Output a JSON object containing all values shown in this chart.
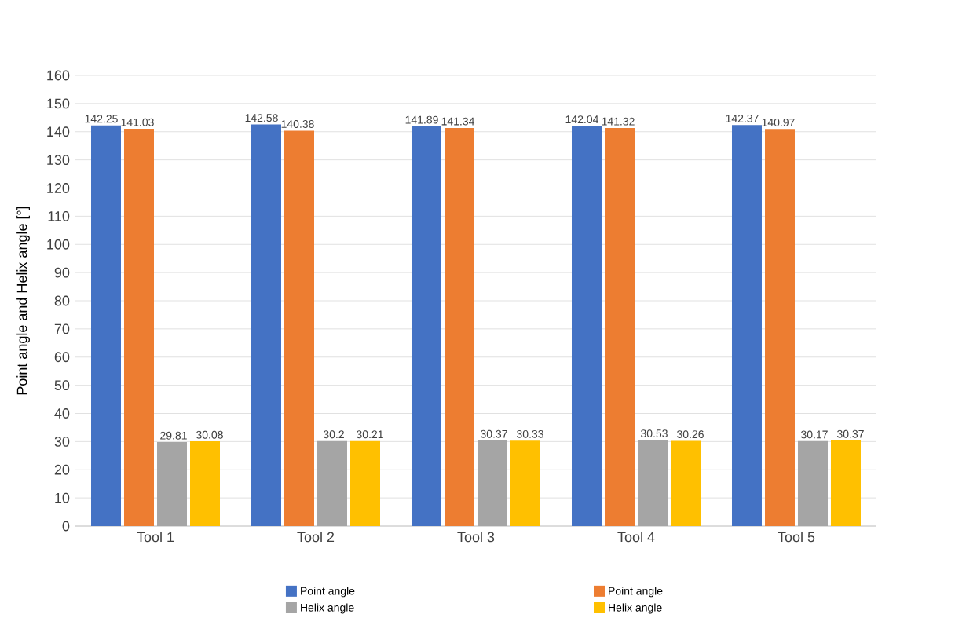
{
  "chart_data": {
    "type": "bar",
    "ylabel": "Point angle and Helix angle [°]",
    "categories": [
      "Tool 1",
      "Tool 2",
      "Tool 3",
      "Tool 4",
      "Tool 5"
    ],
    "series": [
      {
        "name": "Point angle",
        "color": "#4472c4",
        "values": [
          142.25,
          142.58,
          141.89,
          142.04,
          142.37
        ]
      },
      {
        "name": "Point angle",
        "color": "#ed7d31",
        "values": [
          141.03,
          140.38,
          141.34,
          141.32,
          140.97
        ]
      },
      {
        "name": "Helix angle",
        "color": "#a5a5a5",
        "values": [
          29.81,
          30.2,
          30.37,
          30.53,
          30.17
        ]
      },
      {
        "name": "Helix angle",
        "color": "#ffc000",
        "values": [
          30.08,
          30.21,
          30.33,
          30.26,
          30.37
        ]
      }
    ],
    "ylim": [
      0,
      160
    ],
    "yticks": [
      0,
      10,
      20,
      30,
      40,
      50,
      60,
      70,
      80,
      90,
      100,
      110,
      120,
      130,
      140,
      150,
      160
    ],
    "grid": "y",
    "legend": "bottom",
    "data_labels": true
  }
}
